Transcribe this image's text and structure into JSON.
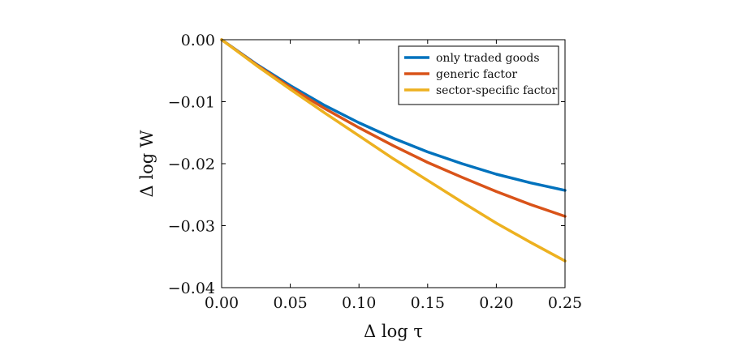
{
  "chart_data": {
    "type": "line",
    "xlabel": "Δ log τ",
    "ylabel": "Δ log W",
    "xlim": [
      0,
      0.25
    ],
    "ylim": [
      -0.04,
      0
    ],
    "x_ticks": [
      0,
      0.05,
      0.1,
      0.15,
      0.2,
      0.25
    ],
    "x_tick_labels": [
      "0.00",
      "0.05",
      "0.10",
      "0.15",
      "0.20",
      "0.25"
    ],
    "y_ticks": [
      0,
      -0.01,
      -0.02,
      -0.03,
      -0.04
    ],
    "y_tick_labels": [
      "0.00",
      "−0.01",
      "−0.02",
      "−0.03",
      "−0.04"
    ],
    "grid": false,
    "legend_position": "top-right",
    "x": [
      0,
      0.025,
      0.05,
      0.075,
      0.1,
      0.125,
      0.15,
      0.175,
      0.2,
      0.225,
      0.25
    ],
    "series": [
      {
        "name": "only traded goods",
        "color": "#0072bd",
        "values": [
          0,
          -0.0039,
          -0.0074,
          -0.0106,
          -0.0134,
          -0.0159,
          -0.0181,
          -0.02,
          -0.0217,
          -0.0231,
          -0.0243
        ]
      },
      {
        "name": "generic factor",
        "color": "#d95319",
        "values": [
          0,
          -0.004,
          -0.0077,
          -0.0111,
          -0.0142,
          -0.0171,
          -0.0198,
          -0.0222,
          -0.0245,
          -0.0266,
          -0.0285
        ]
      },
      {
        "name": "sector-specific factor",
        "color": "#edb120",
        "values": [
          0,
          -0.0041,
          -0.008,
          -0.0118,
          -0.0155,
          -0.0192,
          -0.0227,
          -0.0262,
          -0.0296,
          -0.0327,
          -0.0357
        ]
      }
    ]
  }
}
